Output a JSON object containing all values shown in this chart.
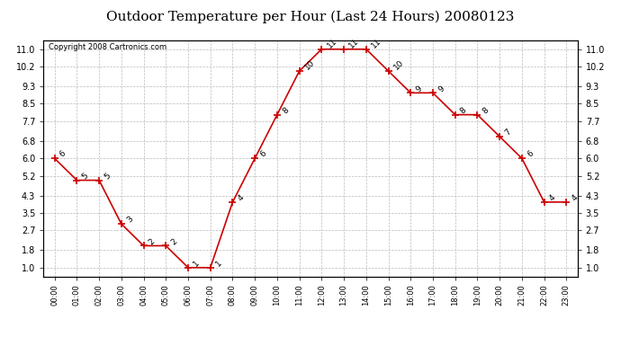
{
  "title": "Outdoor Temperature per Hour (Last 24 Hours) 20080123",
  "copyright": "Copyright 2008 Cartronics.com",
  "hours": [
    "00:00",
    "01:00",
    "02:00",
    "03:00",
    "04:00",
    "05:00",
    "06:00",
    "07:00",
    "08:00",
    "09:00",
    "10:00",
    "11:00",
    "12:00",
    "13:00",
    "14:00",
    "15:00",
    "16:00",
    "17:00",
    "18:00",
    "19:00",
    "20:00",
    "21:00",
    "22:00",
    "23:00"
  ],
  "temps": [
    6,
    5,
    5,
    3,
    2,
    2,
    1,
    1,
    4,
    6,
    8,
    10,
    11,
    11,
    11,
    10,
    9,
    9,
    8,
    8,
    7,
    6,
    4,
    4
  ],
  "yticks": [
    1.0,
    1.8,
    2.7,
    3.5,
    4.3,
    5.2,
    6.0,
    6.8,
    7.7,
    8.5,
    9.3,
    10.2,
    11.0
  ],
  "ylim": [
    0.6,
    11.4
  ],
  "line_color": "#cc0000",
  "marker": "+",
  "marker_size": 6,
  "marker_color": "#cc0000",
  "grid_color": "#bbbbbb",
  "bg_color": "#ffffff",
  "title_fontsize": 11,
  "xlabel_fontsize": 6,
  "ylabel_fontsize": 7,
  "annotation_fontsize": 6.5,
  "copyright_fontsize": 6
}
